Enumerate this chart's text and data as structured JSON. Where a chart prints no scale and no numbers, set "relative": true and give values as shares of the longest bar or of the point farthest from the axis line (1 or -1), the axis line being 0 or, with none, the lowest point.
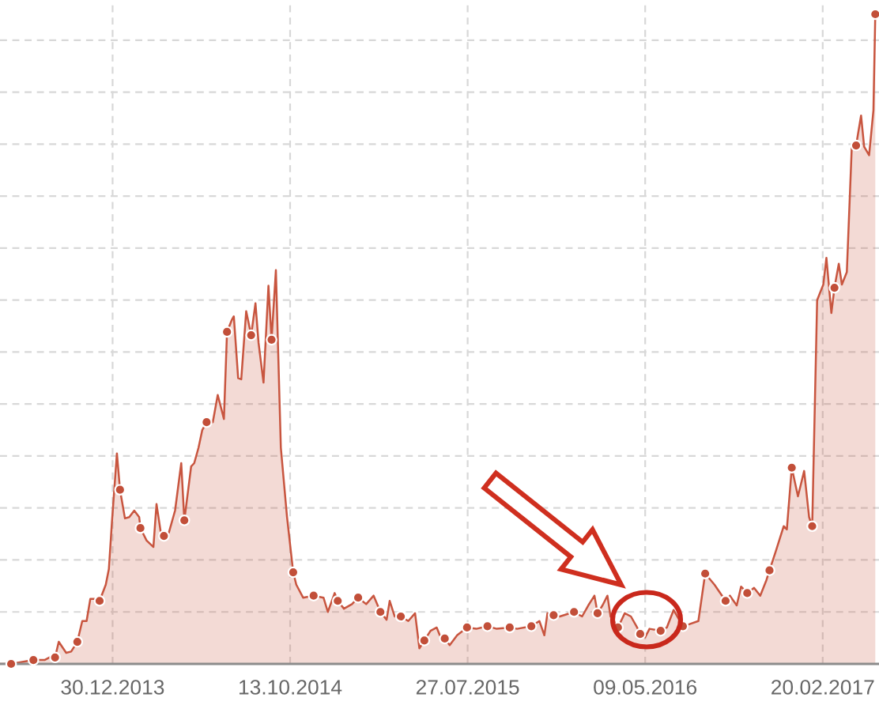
{
  "chart_data": {
    "type": "area",
    "relative": true,
    "grid": true,
    "tick_labels": "x",
    "xlim": [
      "2013-07-01",
      "2017-05-22"
    ],
    "xticks": [
      {
        "value": "2013-12-30",
        "label": "30.12.2013"
      },
      {
        "value": "2014-10-13",
        "label": "13.10.2014"
      },
      {
        "value": "2015-07-27",
        "label": "27.07.2015"
      },
      {
        "value": "2016-05-09",
        "label": "09.05.2016"
      },
      {
        "value": "2017-02-20",
        "label": "20.02.2017"
      }
    ],
    "series": [
      {
        "color": "#c8553f",
        "x": [
          "2013-07-01",
          "2013-07-19",
          "2013-08-24",
          "2013-09-11",
          "2013-09-23",
          "2013-09-28",
          "2013-10-04",
          "2013-10-16",
          "2013-10-24",
          "2013-11-03",
          "2013-11-11",
          "2013-11-18",
          "2013-11-24",
          "2013-12-01",
          "2013-12-09",
          "2013-12-19",
          "2013-12-24",
          "2013-12-29",
          "2014-01-06",
          "2014-01-11",
          "2014-01-19",
          "2014-01-26",
          "2014-02-03",
          "2014-02-11",
          "2014-02-13",
          "2014-02-23",
          "2014-03-06",
          "2014-03-11",
          "2014-03-18",
          "2014-03-23",
          "2014-03-31",
          "2014-04-10",
          "2014-04-20",
          "2014-04-25",
          "2014-05-06",
          "2014-05-11",
          "2014-05-18",
          "2014-05-24",
          "2014-05-31",
          "2014-06-10",
          "2014-06-18",
          "2014-06-28",
          "2014-07-03",
          "2014-07-11",
          "2014-07-14",
          "2014-07-21",
          "2014-07-26",
          "2014-08-03",
          "2014-08-11",
          "2014-08-18",
          "2014-08-23",
          "2014-08-31",
          "2014-09-08",
          "2014-09-13",
          "2014-09-20",
          "2014-09-28",
          "2014-10-08",
          "2014-10-18",
          "2014-10-23",
          "2014-11-03",
          "2014-11-20",
          "2014-12-06",
          "2014-12-13",
          "2014-12-24",
          "2014-12-29",
          "2015-01-08",
          "2015-01-21",
          "2015-01-31",
          "2015-02-13",
          "2015-02-25",
          "2015-03-08",
          "2015-03-18",
          "2015-03-23",
          "2015-03-31",
          "2015-04-10",
          "2015-04-22",
          "2015-05-03",
          "2015-05-10",
          "2015-05-18",
          "2015-05-28",
          "2015-06-07",
          "2015-06-12",
          "2015-06-20",
          "2015-06-28",
          "2015-07-10",
          "2015-07-26",
          "2015-08-10",
          "2015-08-28",
          "2015-09-12",
          "2015-10-03",
          "2015-10-15",
          "2015-11-07",
          "2015-11-20",
          "2015-11-28",
          "2015-12-03",
          "2015-12-13",
          "2015-12-23",
          "2016-01-15",
          "2016-01-28",
          "2016-02-07",
          "2016-02-17",
          "2016-02-22",
          "2016-03-01",
          "2016-03-09",
          "2016-03-14",
          "2016-03-26",
          "2016-04-06",
          "2016-04-16",
          "2016-04-26",
          "2016-05-01",
          "2016-05-09",
          "2016-05-16",
          "2016-06-03",
          "2016-06-13",
          "2016-06-24",
          "2016-07-09",
          "2016-07-19",
          "2016-08-03",
          "2016-08-14",
          "2016-08-21",
          "2016-08-29",
          "2016-09-16",
          "2016-09-23",
          "2016-10-04",
          "2016-10-11",
          "2016-10-21",
          "2016-11-01",
          "2016-11-11",
          "2016-11-21",
          "2016-11-26",
          "2016-12-06",
          "2016-12-19",
          "2016-12-24",
          "2017-01-01",
          "2017-01-11",
          "2017-01-21",
          "2017-01-29",
          "2017-02-03",
          "2017-02-11",
          "2017-02-21",
          "2017-02-26",
          "2017-03-06",
          "2017-03-11",
          "2017-03-18",
          "2017-03-23",
          "2017-03-31",
          "2017-04-08",
          "2017-04-15",
          "2017-04-23",
          "2017-04-28",
          "2017-05-06",
          "2017-05-13",
          "2017-05-16"
        ],
        "values": [
          0,
          0,
          0.006,
          0.006,
          0.012,
          0.01,
          0.034,
          0.017,
          0.019,
          0.034,
          0.066,
          0.066,
          0.1,
          0.1,
          0.097,
          0.122,
          0.146,
          0.219,
          0.324,
          0.268,
          0.224,
          0.226,
          0.236,
          0.226,
          0.209,
          0.19,
          0.18,
          0.246,
          0.202,
          0.197,
          0.202,
          0.236,
          0.309,
          0.221,
          0.304,
          0.309,
          0.333,
          0.36,
          0.372,
          0.372,
          0.414,
          0.377,
          0.511,
          0.53,
          0.535,
          0.44,
          0.438,
          0.543,
          0.506,
          0.555,
          0.494,
          0.433,
          0.582,
          0.499,
          0.606,
          0.333,
          0.226,
          0.141,
          0.122,
          0.102,
          0.105,
          0.102,
          0.08,
          0.109,
          0.097,
          0.085,
          0.092,
          0.102,
          0.092,
          0.105,
          0.08,
          0.068,
          0.097,
          0.073,
          0.073,
          0.066,
          0.078,
          0.024,
          0.036,
          0.051,
          0.056,
          0.044,
          0.039,
          0.029,
          0.044,
          0.056,
          0.054,
          0.058,
          0.054,
          0.056,
          0.054,
          0.058,
          0.066,
          0.044,
          0.078,
          0.075,
          0.073,
          0.08,
          0.073,
          0.09,
          0.105,
          0.078,
          0.09,
          0.105,
          0.073,
          0.056,
          0.078,
          0.073,
          0.056,
          0.046,
          0.041,
          0.054,
          0.051,
          0.056,
          0.083,
          0.058,
          0.061,
          0.066,
          0.139,
          0.131,
          0.122,
          0.097,
          0.105,
          0.09,
          0.119,
          0.109,
          0.117,
          0.105,
          0.129,
          0.144,
          0.173,
          0.212,
          0.207,
          0.302,
          0.258,
          0.297,
          0.226,
          0.212,
          0.56,
          0.584,
          0.625,
          0.54,
          0.579,
          0.616,
          0.584,
          0.603,
          0.796,
          0.798,
          0.844,
          0.796,
          0.783,
          0.852,
          1
        ]
      },
      {
        "type": "scatter",
        "marker": "circle",
        "color": "#c24f39",
        "x": [
          "2013-07-19",
          "2013-08-24",
          "2013-09-28",
          "2013-11-03",
          "2013-12-09",
          "2014-01-11",
          "2014-02-13",
          "2014-03-23",
          "2014-04-25",
          "2014-05-31",
          "2014-07-03",
          "2014-08-11",
          "2014-09-13",
          "2014-10-18",
          "2014-11-20",
          "2014-12-29",
          "2015-01-31",
          "2015-03-08",
          "2015-04-10",
          "2015-05-18",
          "2015-06-20",
          "2015-07-26",
          "2015-08-28",
          "2015-10-03",
          "2015-11-07",
          "2015-12-13",
          "2016-01-15",
          "2016-02-22",
          "2016-03-26",
          "2016-05-01",
          "2016-06-03",
          "2016-07-09",
          "2016-08-14",
          "2016-09-16",
          "2016-10-21",
          "2016-11-26",
          "2017-01-01",
          "2017-02-03",
          "2017-03-11",
          "2017-04-15",
          "2017-05-16"
        ],
        "values": [
          0,
          0.006,
          0.01,
          0.034,
          0.097,
          0.268,
          0.209,
          0.197,
          0.221,
          0.372,
          0.511,
          0.506,
          0.499,
          0.141,
          0.105,
          0.097,
          0.102,
          0.08,
          0.073,
          0.036,
          0.039,
          0.056,
          0.058,
          0.056,
          0.058,
          0.075,
          0.08,
          0.078,
          0.056,
          0.046,
          0.051,
          0.058,
          0.139,
          0.097,
          0.109,
          0.144,
          0.302,
          0.212,
          0.579,
          0.798,
          1
        ]
      }
    ]
  }
}
